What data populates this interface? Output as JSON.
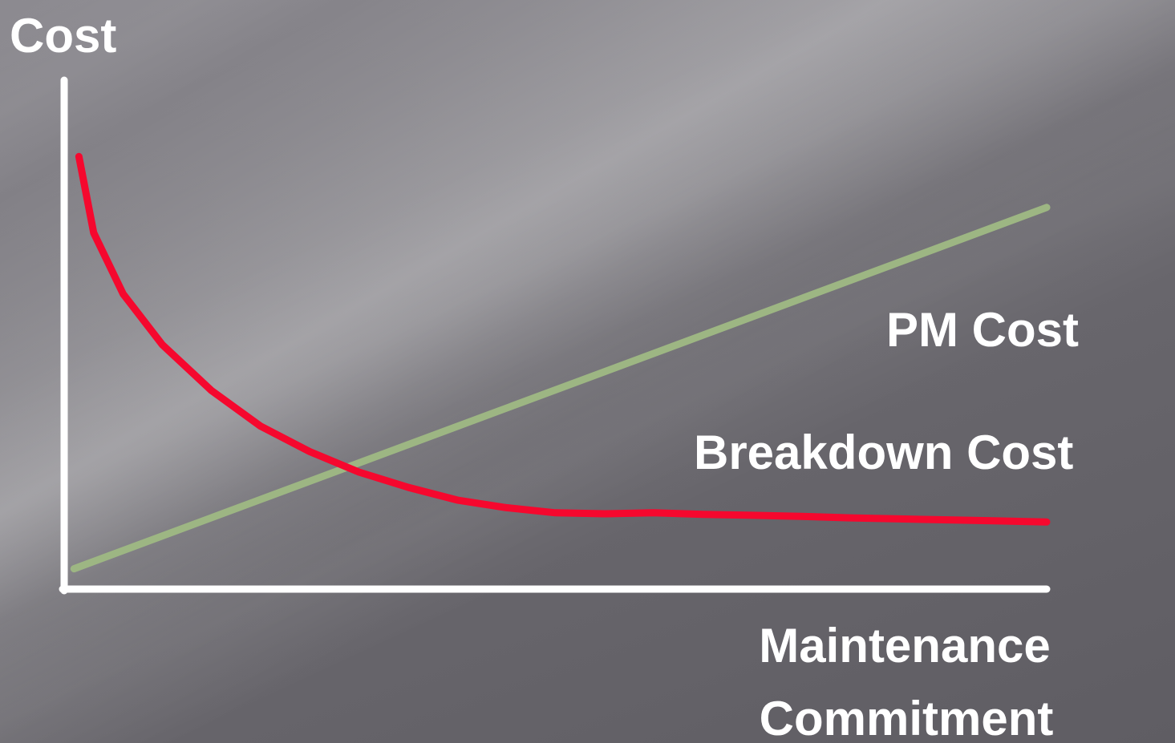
{
  "chart_data": {
    "type": "line",
    "ylabel": "Cost",
    "xlabel_lines": [
      "Maintenance",
      "Commitment"
    ],
    "series": [
      {
        "name": "PM Cost",
        "color": "#9db683",
        "x": [
          0.01,
          1.0
        ],
        "y": [
          0.04,
          0.75
        ]
      },
      {
        "name": "Breakdown Cost",
        "color": "#f5082e",
        "x": [
          0.015,
          0.03,
          0.06,
          0.1,
          0.15,
          0.2,
          0.25,
          0.3,
          0.35,
          0.4,
          0.45,
          0.5,
          0.55,
          0.6,
          0.65,
          0.7,
          0.75,
          0.8,
          0.85,
          0.9,
          0.95,
          1.0
        ],
        "y": [
          0.85,
          0.7,
          0.58,
          0.48,
          0.39,
          0.32,
          0.27,
          0.23,
          0.2,
          0.175,
          0.16,
          0.15,
          0.148,
          0.15,
          0.147,
          0.145,
          0.143,
          0.14,
          0.138,
          0.136,
          0.134,
          0.132
        ]
      }
    ],
    "xlim": [
      0,
      1
    ],
    "ylim": [
      0,
      1
    ],
    "grid": false,
    "legend": "inline-right"
  }
}
